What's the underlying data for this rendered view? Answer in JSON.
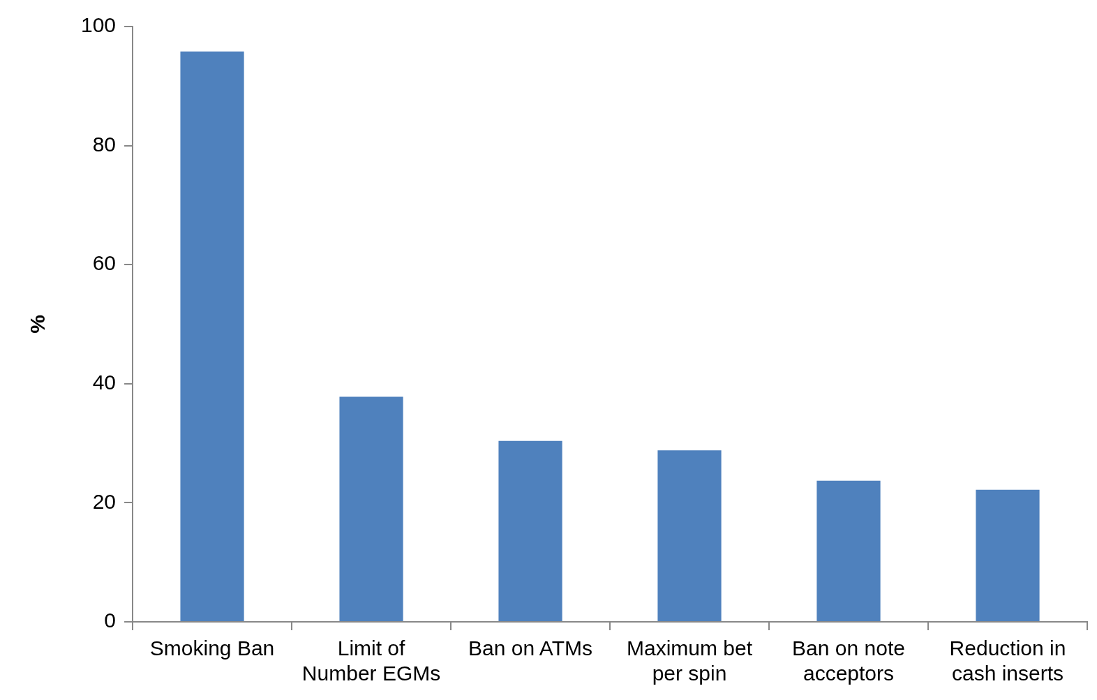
{
  "chart_data": {
    "type": "bar",
    "ylabel": "%",
    "categories": [
      "Smoking Ban",
      "Limit of Number EGMs",
      "Ban on ATMs",
      "Maximum bet per spin",
      "Ban on note acceptors",
      "Reduction in cash inserts"
    ],
    "values": [
      95.8,
      37.8,
      30.4,
      28.8,
      23.7,
      22.2
    ],
    "color": "#4f81bd",
    "ylim": [
      0,
      100
    ],
    "yticks": [
      0,
      20,
      40,
      60,
      80,
      100
    ],
    "grid": false,
    "legend": false
  }
}
